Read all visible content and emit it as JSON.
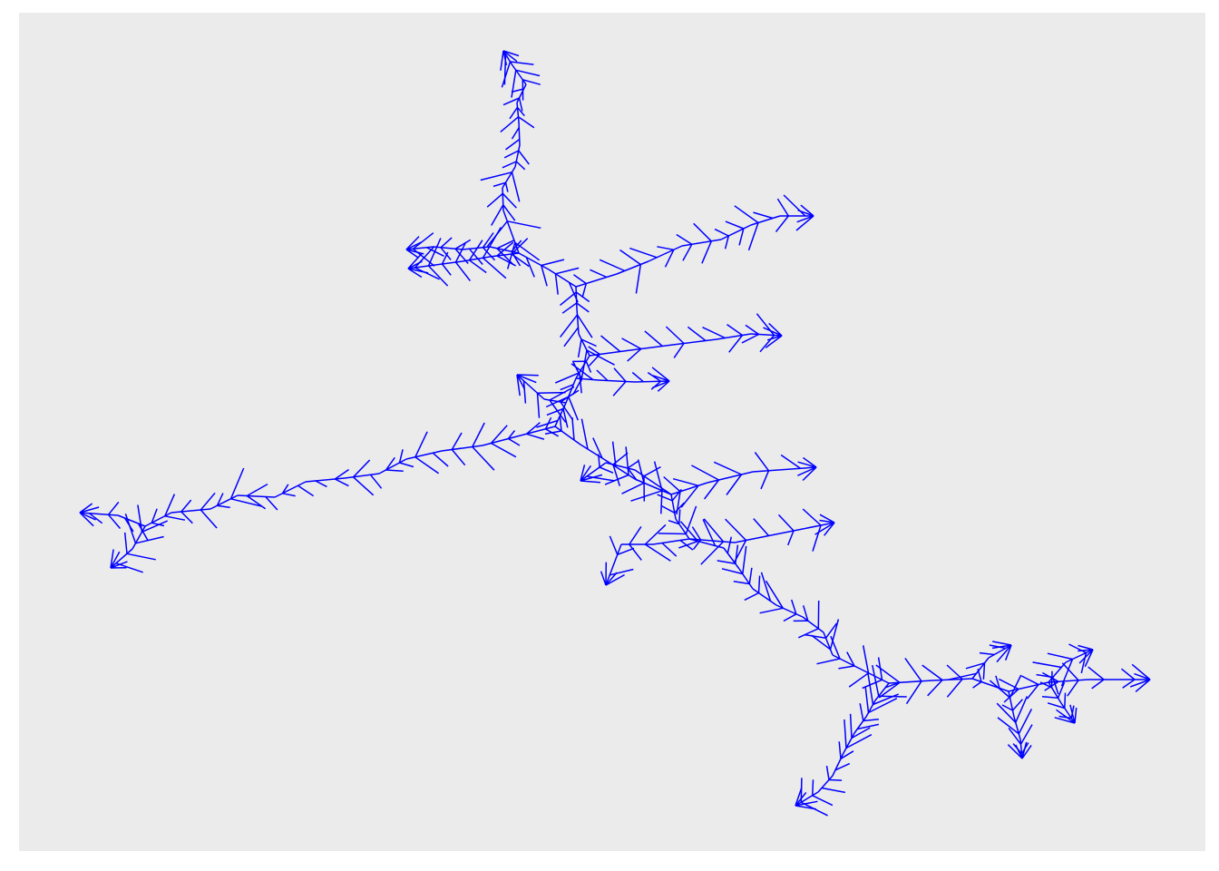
{
  "figure": {
    "panel_background": "#EBEBEB",
    "page_background": "#FFFFFF",
    "line_color": "#0000FF",
    "show_axes": false,
    "show_grid": false,
    "description_type": "branching fractal tree"
  }
}
